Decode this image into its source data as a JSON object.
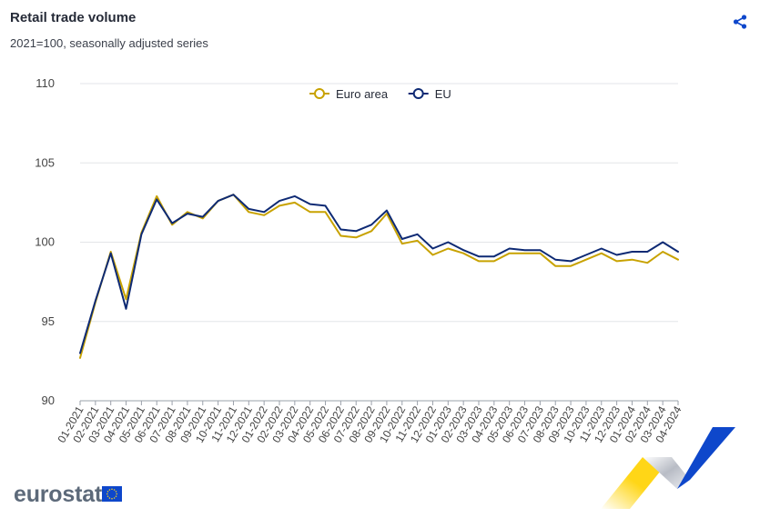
{
  "header": {
    "title": "Retail trade volume",
    "subtitle": "2021=100, seasonally adjusted series",
    "share_icon": "share-icon"
  },
  "branding": {
    "logo_text": "eurostat",
    "flag_icon": "eu-flag-icon",
    "swoosh_colors": [
      "#ffd617",
      "#0e47cb"
    ]
  },
  "chart_data": {
    "type": "line",
    "title": "Retail trade volume",
    "subtitle": "2021=100, seasonally adjusted series",
    "xlabel": "",
    "ylabel": "",
    "ylim": [
      90,
      110
    ],
    "yticks": [
      90,
      95,
      100,
      105,
      110
    ],
    "grid": true,
    "legend_position": "top-center",
    "categories": [
      "01-2021",
      "02-2021",
      "03-2021",
      "04-2021",
      "05-2021",
      "06-2021",
      "07-2021",
      "08-2021",
      "09-2021",
      "10-2021",
      "11-2021",
      "12-2021",
      "01-2022",
      "02-2022",
      "03-2022",
      "04-2022",
      "05-2022",
      "06-2022",
      "07-2022",
      "08-2022",
      "09-2022",
      "10-2022",
      "11-2022",
      "12-2022",
      "01-2023",
      "02-2023",
      "03-2023",
      "04-2023",
      "05-2023",
      "06-2023",
      "07-2023",
      "08-2023",
      "09-2023",
      "10-2023",
      "11-2023",
      "12-2023",
      "01-2024",
      "02-2024",
      "03-2024",
      "04-2024"
    ],
    "series": [
      {
        "name": "Euro area",
        "color": "#c8a200",
        "values": [
          92.7,
          96.2,
          99.4,
          96.4,
          100.6,
          102.9,
          101.1,
          101.9,
          101.5,
          102.6,
          103.0,
          101.9,
          101.7,
          102.3,
          102.5,
          101.9,
          101.9,
          100.4,
          100.3,
          100.7,
          101.8,
          99.9,
          100.1,
          99.2,
          99.6,
          99.3,
          98.8,
          98.8,
          99.3,
          99.3,
          99.3,
          98.5,
          98.5,
          98.9,
          99.3,
          98.8,
          98.9,
          98.7,
          99.4,
          98.9
        ]
      },
      {
        "name": "EU",
        "color": "#0e2a74",
        "values": [
          93.0,
          96.3,
          99.3,
          95.8,
          100.5,
          102.7,
          101.2,
          101.8,
          101.6,
          102.6,
          103.0,
          102.1,
          101.9,
          102.6,
          102.9,
          102.4,
          102.3,
          100.8,
          100.7,
          101.1,
          102.0,
          100.2,
          100.5,
          99.6,
          100.0,
          99.5,
          99.1,
          99.1,
          99.6,
          99.5,
          99.5,
          98.9,
          98.8,
          99.2,
          99.6,
          99.2,
          99.4,
          99.4,
          100.0,
          99.4
        ]
      }
    ]
  }
}
